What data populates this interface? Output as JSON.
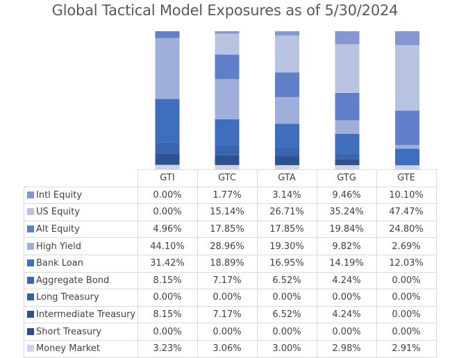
{
  "chart_data": {
    "type": "bar",
    "stacked": true,
    "title": "Global Tactical Model Exposures as of 5/30/2024",
    "categories": [
      "GTI",
      "GTC",
      "GTA",
      "GTG",
      "GTE"
    ],
    "unit": "%",
    "ylim": [
      0,
      100
    ],
    "legend": "table-left",
    "series": [
      {
        "name": "Intl Equity",
        "color": "#8497d2",
        "values": [
          0.0,
          1.77,
          3.14,
          9.46,
          10.1
        ],
        "labels": [
          "0.00%",
          "1.77%",
          "3.14%",
          "9.46%",
          "10.10%"
        ]
      },
      {
        "name": "US Equity",
        "color": "#b8c3e2",
        "values": [
          0.0,
          15.14,
          26.71,
          35.24,
          47.47
        ],
        "labels": [
          "0.00%",
          "15.14%",
          "26.71%",
          "35.24%",
          "47.47%"
        ]
      },
      {
        "name": "Alt Equity",
        "color": "#5f80c8",
        "values": [
          4.96,
          17.85,
          17.85,
          19.84,
          24.8
        ],
        "labels": [
          "4.96%",
          "17.85%",
          "17.85%",
          "19.84%",
          "24.80%"
        ]
      },
      {
        "name": "High Yield",
        "color": "#a0afda",
        "values": [
          44.1,
          28.96,
          19.3,
          9.82,
          2.69
        ],
        "labels": [
          "44.10%",
          "28.96%",
          "19.30%",
          "9.82%",
          "2.69%"
        ]
      },
      {
        "name": "Bank Loan",
        "color": "#3f6ebe",
        "values": [
          31.42,
          18.89,
          16.95,
          14.19,
          12.03
        ],
        "labels": [
          "31.42%",
          "18.89%",
          "16.95%",
          "14.19%",
          "12.03%"
        ]
      },
      {
        "name": "Aggregate Bond",
        "color": "#3a64ae",
        "values": [
          8.15,
          7.17,
          6.52,
          4.24,
          0.0
        ],
        "labels": [
          "8.15%",
          "7.17%",
          "6.52%",
          "4.24%",
          "0.00%"
        ]
      },
      {
        "name": "Long Treasury",
        "color": "#3460a8",
        "values": [
          0.0,
          0.0,
          0.0,
          0.0,
          0.0
        ],
        "labels": [
          "0.00%",
          "0.00%",
          "0.00%",
          "0.00%",
          "0.00%"
        ]
      },
      {
        "name": "Intermediate Treasury",
        "color": "#30518f",
        "values": [
          8.15,
          7.17,
          6.52,
          4.24,
          0.0
        ],
        "labels": [
          "8.15%",
          "7.17%",
          "6.52%",
          "4.24%",
          "0.00%"
        ]
      },
      {
        "name": "Short Treasury",
        "color": "#2e4d88",
        "values": [
          0.0,
          0.0,
          0.0,
          0.0,
          0.0
        ],
        "labels": [
          "0.00%",
          "0.00%",
          "0.00%",
          "0.00%",
          "0.00%"
        ]
      },
      {
        "name": "Money Market",
        "color": "#cdd4e9",
        "values": [
          3.23,
          3.06,
          3.0,
          2.98,
          2.91
        ],
        "labels": [
          "3.23%",
          "3.06%",
          "3.00%",
          "2.98%",
          "2.91%"
        ]
      }
    ]
  }
}
